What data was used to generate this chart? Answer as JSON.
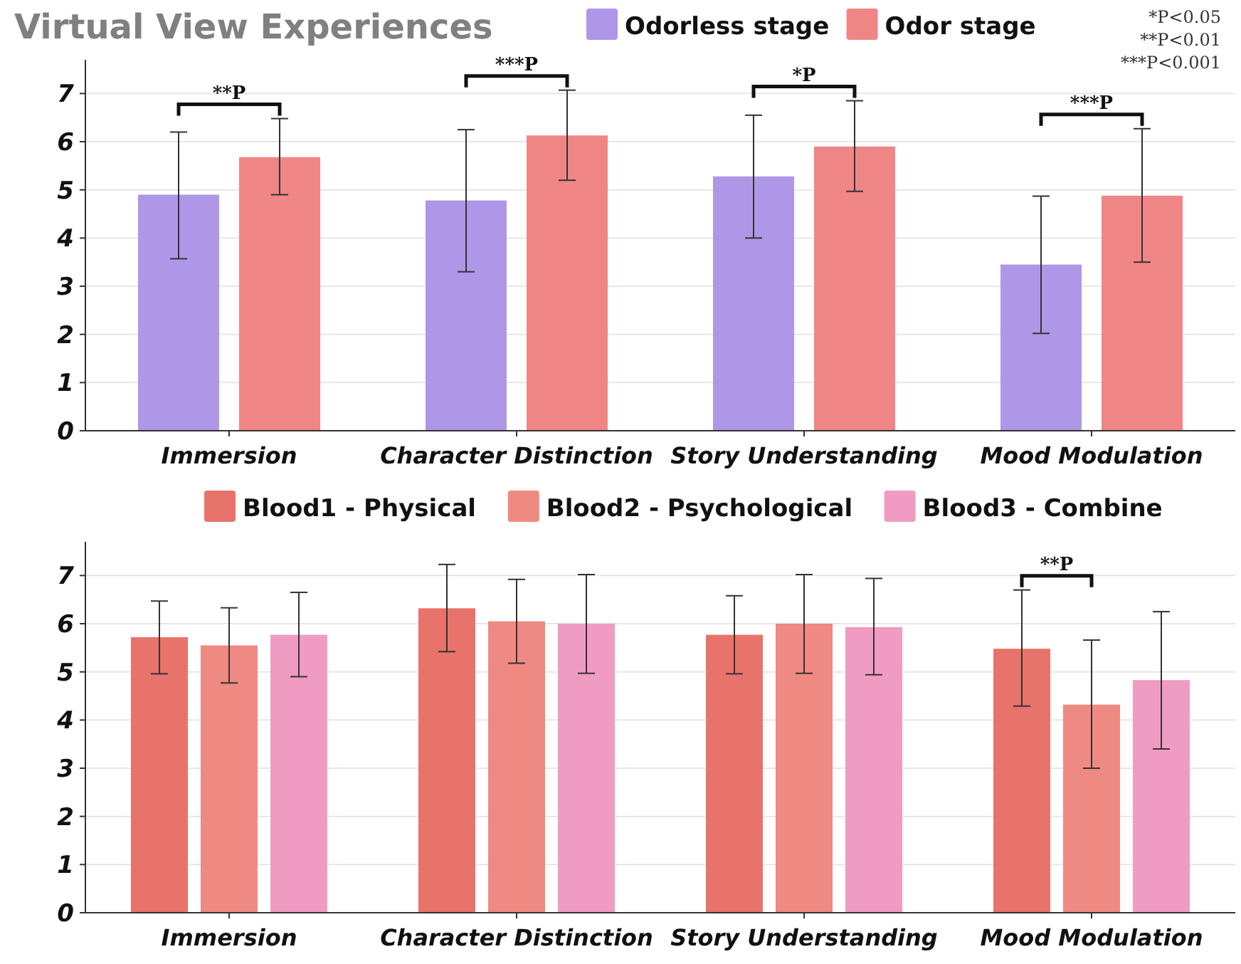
{
  "chart_data": [
    {
      "type": "bar",
      "title": "Virtual View Experiences",
      "categories": [
        "Immersion",
        "Character Distinction",
        "Story Understanding",
        "Mood Modulation"
      ],
      "series": [
        {
          "name": "Odorless stage",
          "color": "#ae97e6",
          "values": [
            4.9,
            4.78,
            5.28,
            3.45
          ],
          "errors": [
            [
              3.57,
              6.2
            ],
            [
              3.3,
              6.25
            ],
            [
              4.0,
              6.55
            ],
            [
              2.02,
              4.87
            ]
          ]
        },
        {
          "name": "Odor stage",
          "color": "#f08585",
          "values": [
            5.68,
            6.13,
            5.9,
            4.88
          ],
          "errors": [
            [
              4.9,
              6.48
            ],
            [
              5.2,
              7.07
            ],
            [
              4.97,
              6.85
            ],
            [
              3.5,
              6.27
            ]
          ]
        }
      ],
      "ylim": [
        0,
        7.7
      ],
      "yticks": [
        0,
        1,
        2,
        3,
        4,
        5,
        6,
        7
      ],
      "grid": "y",
      "legend": "top",
      "annotations": [
        "**P",
        "***P",
        "*P",
        "***P",
        "*P<0.05",
        "**P<0.01",
        "***P<0.001"
      ]
    },
    {
      "type": "bar",
      "categories": [
        "Immersion",
        "Character Distinction",
        "Story Understanding",
        "Mood Modulation"
      ],
      "series": [
        {
          "name": "Blood1 - Physical",
          "color": "#e8736a",
          "values": [
            5.72,
            6.32,
            5.77,
            5.48
          ],
          "errors": [
            [
              4.96,
              6.47
            ],
            [
              5.42,
              7.23
            ],
            [
              4.96,
              6.58
            ],
            [
              4.29,
              6.7
            ]
          ]
        },
        {
          "name": "Blood2 - Psychological",
          "color": "#ef8a82",
          "values": [
            5.55,
            6.05,
            6.0,
            4.32
          ],
          "errors": [
            [
              4.77,
              6.33
            ],
            [
              5.18,
              6.92
            ],
            [
              4.97,
              7.02
            ],
            [
              3.0,
              5.66
            ]
          ]
        },
        {
          "name": "Blood3 - Combine",
          "color": "#f09cc2",
          "values": [
            5.77,
            6.0,
            5.93,
            4.83
          ],
          "errors": [
            [
              4.9,
              6.65
            ],
            [
              4.97,
              7.02
            ],
            [
              4.94,
              6.94
            ],
            [
              3.4,
              6.25
            ]
          ]
        }
      ],
      "ylim": [
        0,
        7.7
      ],
      "yticks": [
        0,
        1,
        2,
        3,
        4,
        5,
        6,
        7
      ],
      "grid": "y",
      "legend": "top",
      "annotations": [
        "**P"
      ]
    }
  ]
}
